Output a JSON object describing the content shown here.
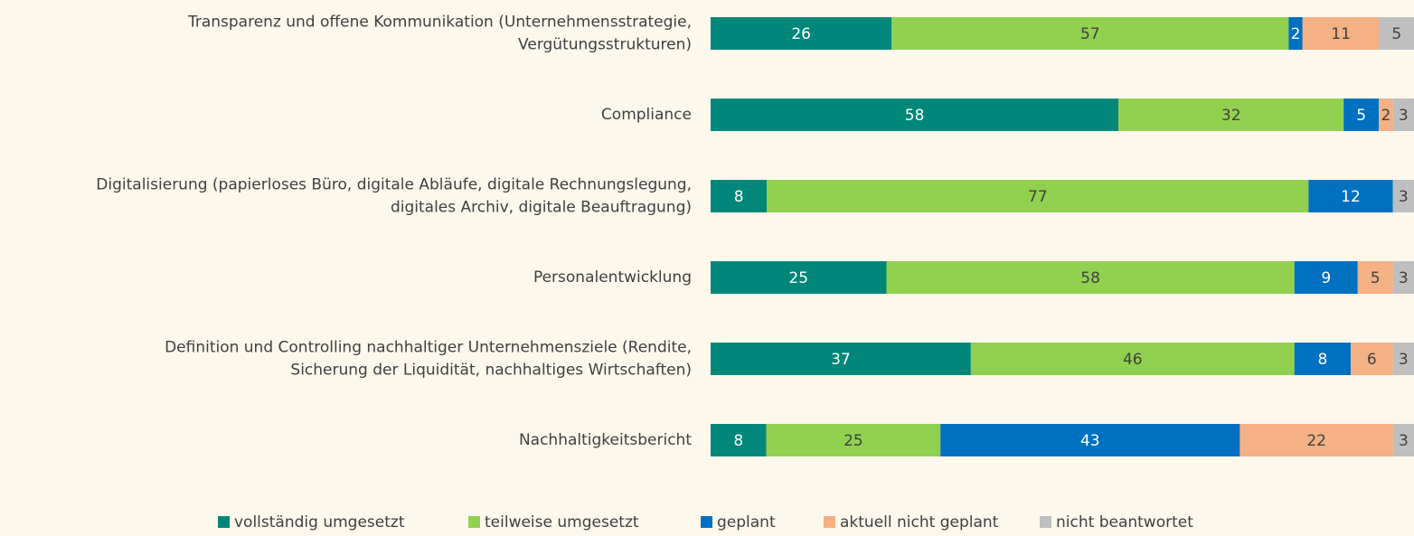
{
  "chart_data": {
    "type": "stacked-bar-100-horizontal",
    "categories": [
      [
        "Transparenz und offene Kommunikation (Unternehmensstrategie,",
        "Vergütungsstrukturen)"
      ],
      [
        "Compliance"
      ],
      [
        "Digitalisierung (papierloses Büro, digitale Abläufe, digitale Rechnungslegung,",
        "digitales Archiv, digitale Beauftragung)"
      ],
      [
        "Personalentwicklung"
      ],
      [
        "Definition und Controlling nachhaltiger Unternehmensziele (Rendite,",
        "Sicherung der Liquidität, nachhaltiges Wirtschaften)"
      ],
      [
        "Nachhaltigkeitsbericht"
      ]
    ],
    "series": [
      {
        "name": "vollständig umgesetzt",
        "color": "#00877a",
        "values": [
          26,
          58,
          8,
          25,
          37,
          8
        ]
      },
      {
        "name": "teilweise umgesetzt",
        "color": "#92d050",
        "values": [
          57,
          32,
          77,
          58,
          46,
          25
        ]
      },
      {
        "name": "geplant",
        "color": "#0070c0",
        "values": [
          2,
          5,
          12,
          9,
          8,
          43
        ]
      },
      {
        "name": "aktuell nicht geplant",
        "color": "#f4b183",
        "values": [
          11,
          2,
          null,
          5,
          6,
          22
        ]
      },
      {
        "name": "nicht beantwortet",
        "color": "#bfbfbf",
        "values": [
          5,
          3,
          3,
          3,
          3,
          3
        ]
      }
    ],
    "legend": "bottom"
  }
}
